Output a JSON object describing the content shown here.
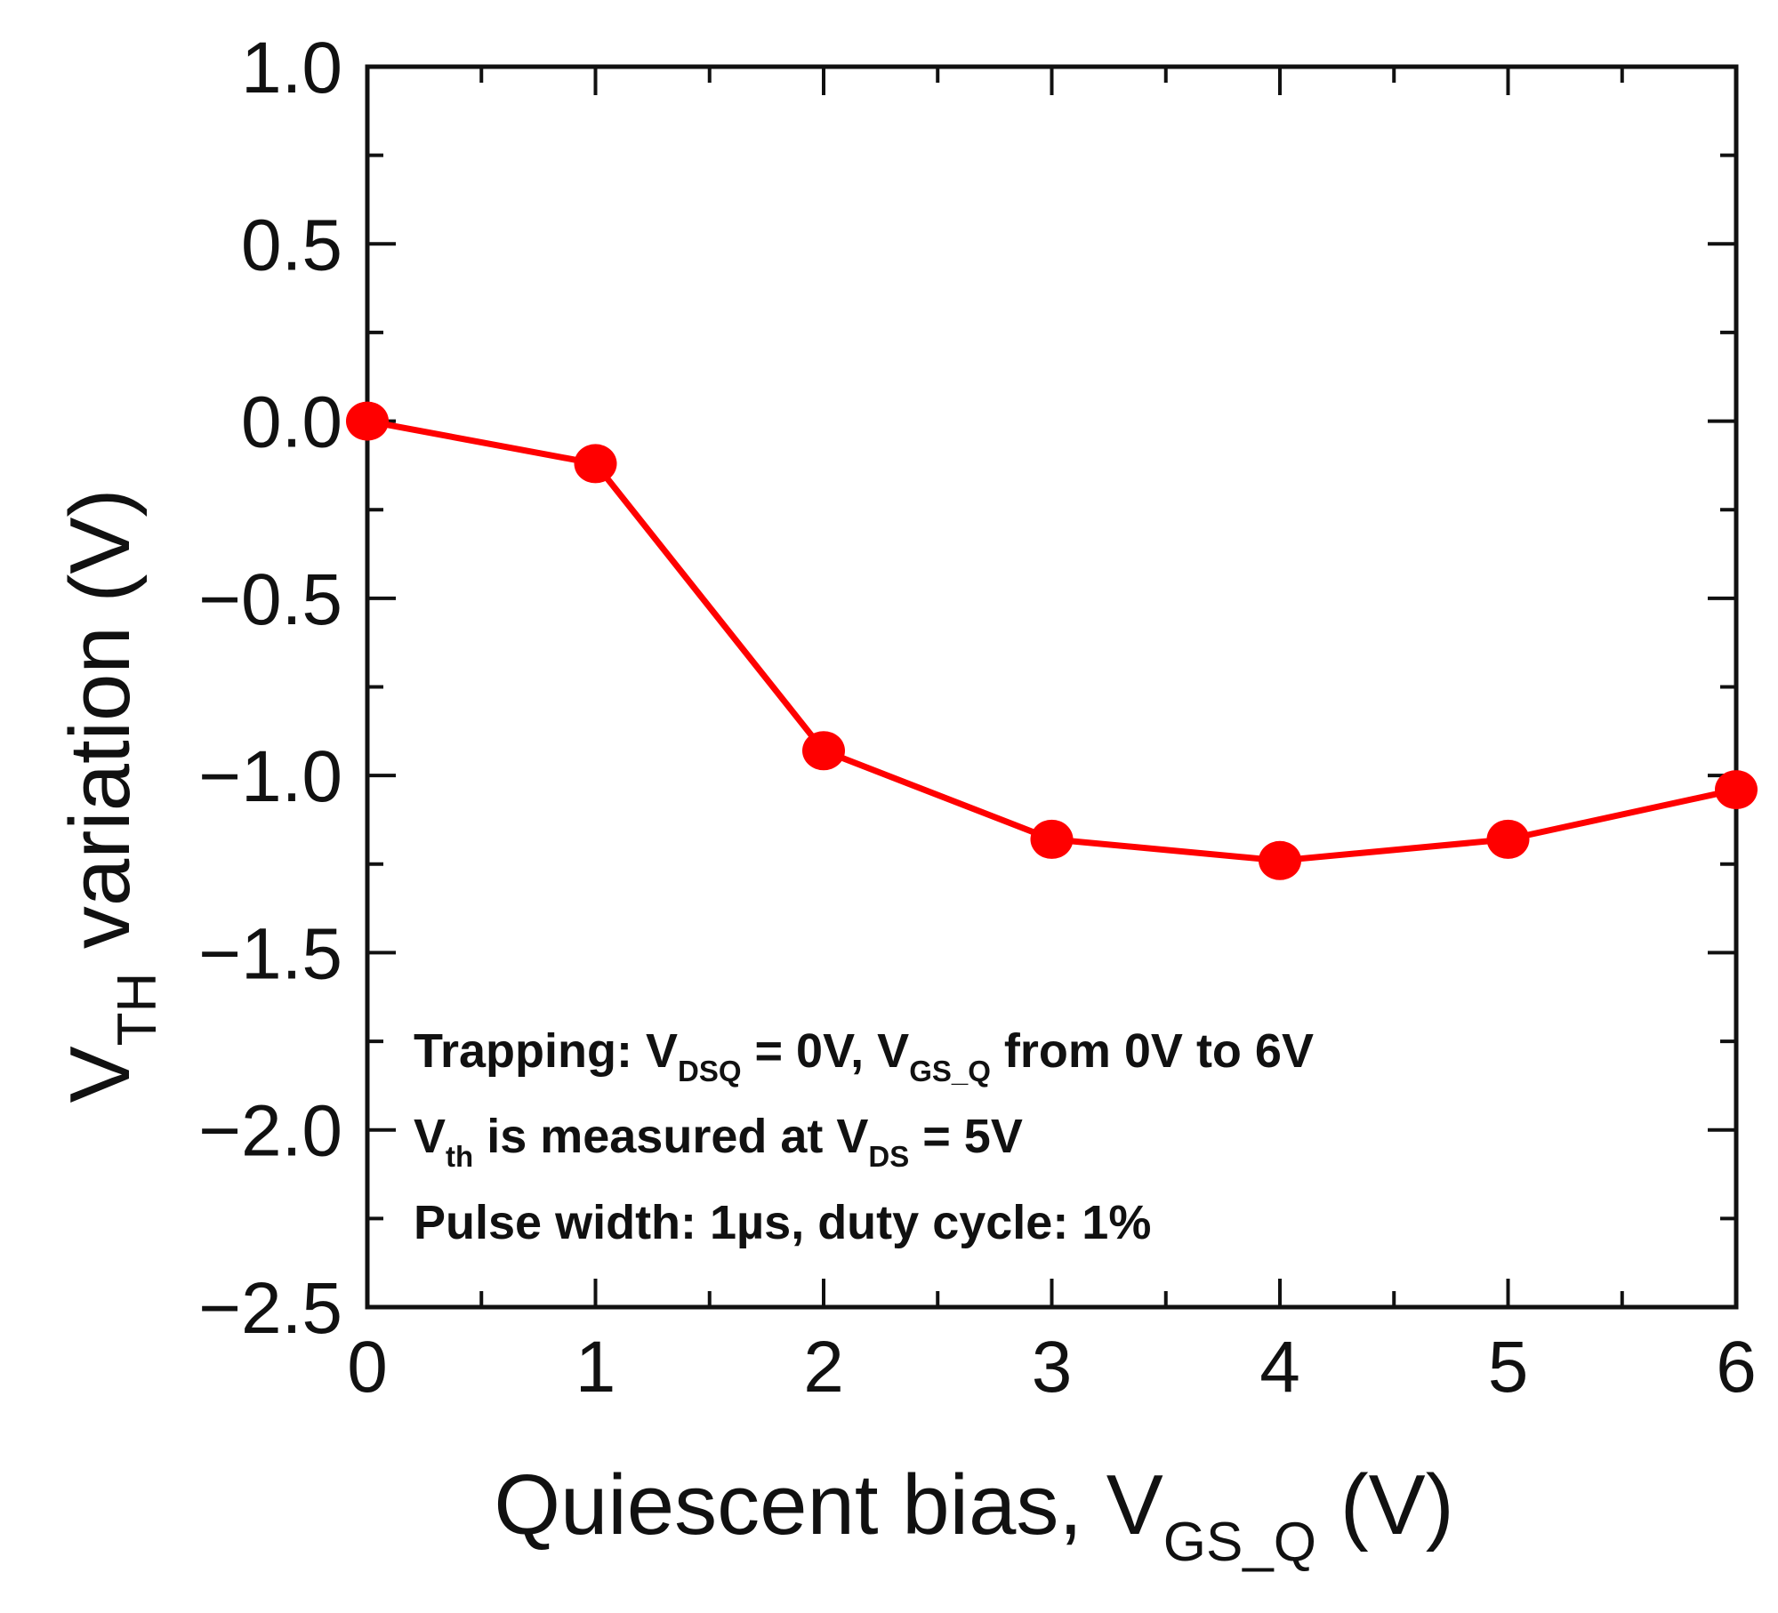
{
  "chart_data": {
    "type": "line",
    "xlabel": {
      "main": "Quiescent bias, V",
      "sub": "GS_Q",
      "unit": " (V)"
    },
    "ylabel": {
      "main": "V",
      "sub": "TH",
      "rest": " variation (V)"
    },
    "xlim": [
      0,
      6
    ],
    "ylim": [
      -2.5,
      1.0
    ],
    "x_ticks": [
      0,
      1,
      2,
      3,
      4,
      5,
      6
    ],
    "x_tick_labels": [
      "0",
      "1",
      "2",
      "3",
      "4",
      "5",
      "6"
    ],
    "y_ticks": [
      1.0,
      0.5,
      0.0,
      -0.5,
      -1.0,
      -1.5,
      -2.0,
      -2.5
    ],
    "y_tick_labels": [
      "1.0",
      "0.5",
      "0.0",
      "−0.5",
      "−1.0",
      "−1.5",
      "−2.0",
      "−2.5"
    ],
    "series": [
      {
        "name": "VTH variation",
        "color": "#ff0000",
        "x": [
          0,
          1,
          2,
          3,
          4,
          5,
          6
        ],
        "y": [
          0.0,
          -0.12,
          -0.93,
          -1.18,
          -1.24,
          -1.18,
          -1.04
        ]
      }
    ],
    "annotations": {
      "line1": {
        "p1": "Trapping: V",
        "s1": "DSQ",
        "p2": " = 0V, V",
        "s2": "GS_Q",
        "p3": " from 0V to 6V"
      },
      "line2": {
        "p1": "V",
        "s1": "th",
        "p2": " is measured at V",
        "s2": "DS",
        "p3": " = 5V"
      },
      "line3": {
        "p1": "Pulse width: 1µs, duty cycle: 1%"
      }
    }
  }
}
